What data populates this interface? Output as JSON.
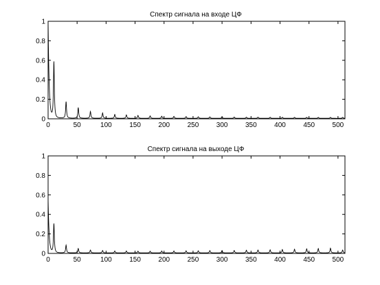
{
  "chart_data": [
    {
      "type": "line",
      "title": "Спектр сигнала на входе ЦФ",
      "xlabel": "",
      "ylabel": "",
      "xlim": [
        0,
        512
      ],
      "ylim": [
        0,
        1
      ],
      "xticks": [
        0,
        50,
        100,
        150,
        200,
        250,
        300,
        350,
        400,
        450,
        500
      ],
      "yticks": [
        0,
        0.2,
        0.4,
        0.6,
        0.8,
        1
      ],
      "ytick_labels": [
        "0",
        "0.2",
        "0.4",
        "0.6",
        "0.8",
        "1"
      ],
      "grid": false,
      "baseline": 0.005,
      "dc_peak": 1.0,
      "peaks": [
        [
          10,
          0.58
        ],
        [
          31,
          0.17
        ],
        [
          52,
          0.11
        ],
        [
          73,
          0.07
        ],
        [
          94,
          0.055
        ],
        [
          115,
          0.04
        ],
        [
          135,
          0.035
        ],
        [
          155,
          0.03
        ],
        [
          176,
          0.025
        ],
        [
          196,
          0.022
        ],
        [
          217,
          0.02
        ],
        [
          238,
          0.018
        ],
        [
          259,
          0.016
        ],
        [
          279,
          0.015
        ],
        [
          300,
          0.014
        ],
        [
          321,
          0.013
        ],
        [
          342,
          0.012
        ],
        [
          362,
          0.012
        ],
        [
          383,
          0.011
        ],
        [
          404,
          0.011
        ],
        [
          425,
          0.01
        ],
        [
          446,
          0.01
        ],
        [
          466,
          0.01
        ],
        [
          487,
          0.01
        ],
        [
          508,
          0.01
        ]
      ]
    },
    {
      "type": "line",
      "title": "Спектр сигнала на выходе ЦФ",
      "xlabel": "",
      "ylabel": "",
      "xlim": [
        0,
        512
      ],
      "ylim": [
        0,
        1
      ],
      "xticks": [
        0,
        50,
        100,
        150,
        200,
        250,
        300,
        350,
        400,
        450,
        500
      ],
      "yticks": [
        0,
        0.2,
        0.4,
        0.6,
        0.8,
        1
      ],
      "ytick_labels": [
        "0",
        "0.2",
        "0.4",
        "0.6",
        "0.8",
        "1"
      ],
      "grid": false,
      "baseline": 0.005,
      "dc_peak": 0.55,
      "peaks": [
        [
          10,
          0.3
        ],
        [
          31,
          0.08
        ],
        [
          52,
          0.045
        ],
        [
          73,
          0.03
        ],
        [
          94,
          0.025
        ],
        [
          115,
          0.02
        ],
        [
          135,
          0.02
        ],
        [
          155,
          0.018
        ],
        [
          176,
          0.018
        ],
        [
          196,
          0.02
        ],
        [
          217,
          0.02
        ],
        [
          238,
          0.022
        ],
        [
          259,
          0.022
        ],
        [
          279,
          0.024
        ],
        [
          300,
          0.025
        ],
        [
          321,
          0.025
        ],
        [
          342,
          0.028
        ],
        [
          362,
          0.03
        ],
        [
          383,
          0.032
        ],
        [
          404,
          0.035
        ],
        [
          425,
          0.038
        ],
        [
          446,
          0.042
        ],
        [
          466,
          0.045
        ],
        [
          487,
          0.048
        ],
        [
          508,
          0.03
        ]
      ]
    }
  ]
}
